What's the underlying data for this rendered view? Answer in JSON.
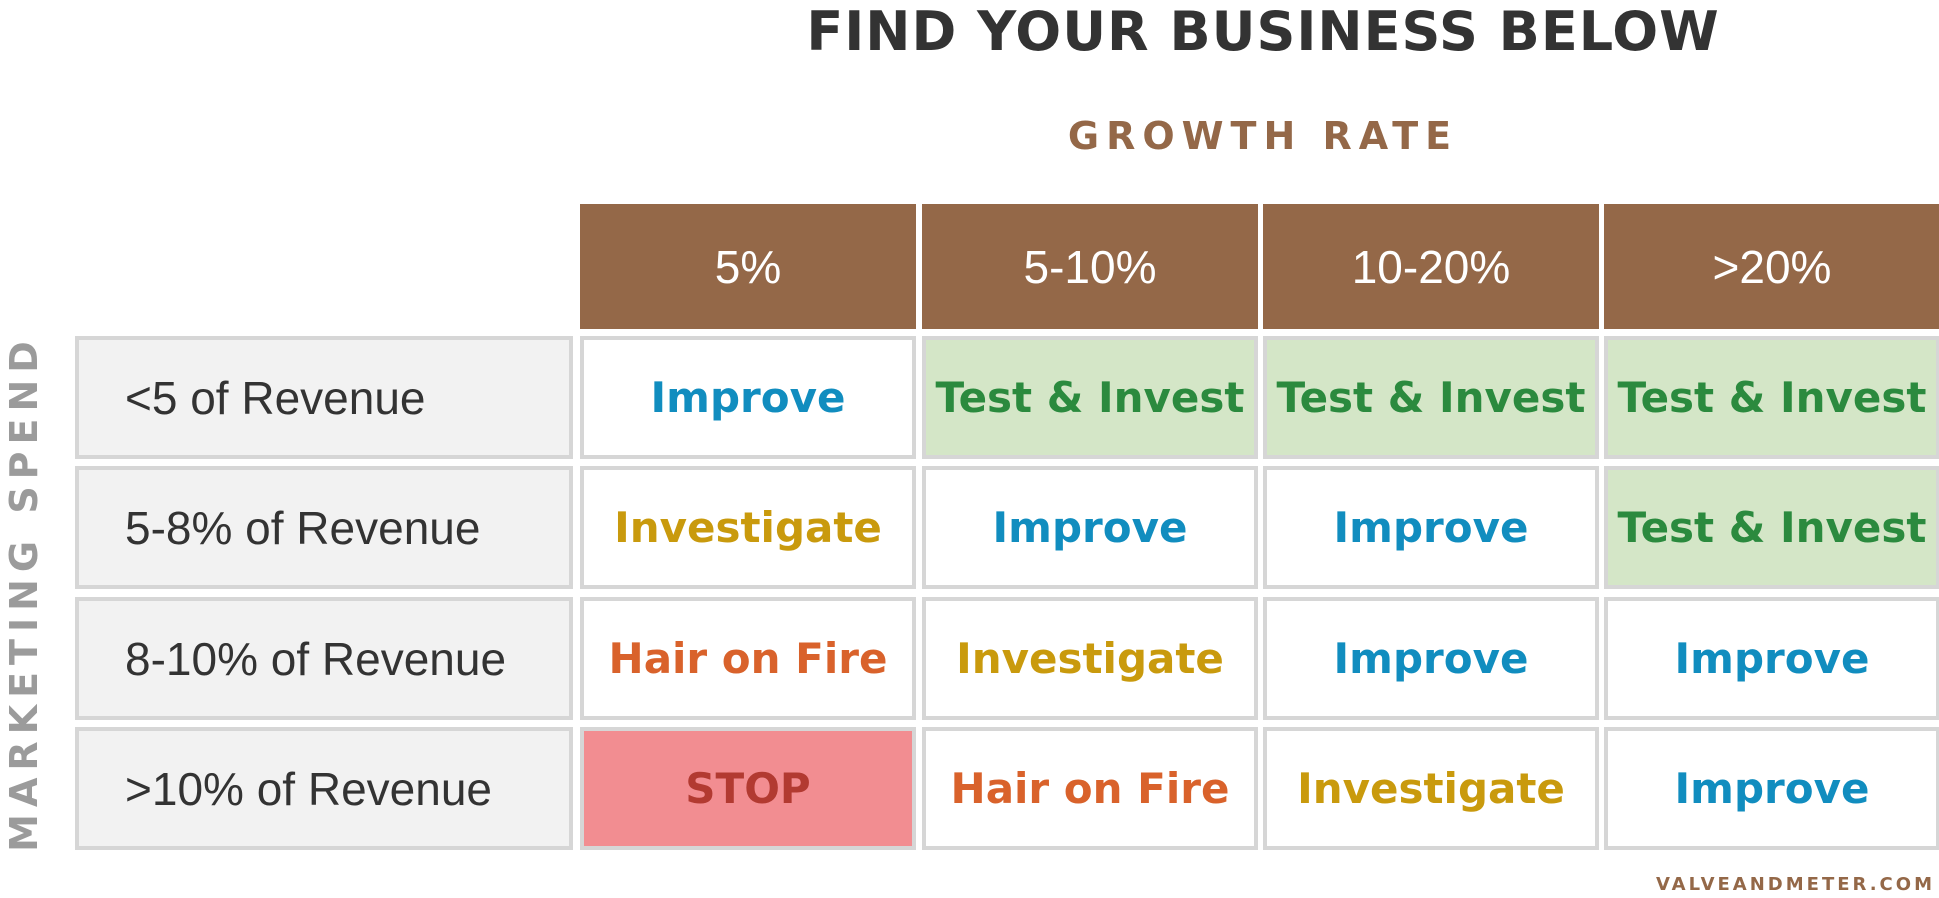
{
  "title": "FIND YOUR BUSINESS BELOW",
  "column_axis_label": "GROWTH RATE",
  "row_axis_label": "MARKETING SPEND",
  "columns": [
    "5%",
    "5-10%",
    "10-20%",
    ">20%"
  ],
  "rows": [
    {
      "label": "<5 of Revenue",
      "cells": [
        "Improve",
        "Test & Invest",
        "Test & Invest",
        "Test & Invest"
      ]
    },
    {
      "label": "5-8% of Revenue",
      "cells": [
        "Investigate",
        "Improve",
        "Improve",
        "Test & Invest"
      ]
    },
    {
      "label": "8-10% of Revenue",
      "cells": [
        "Hair on Fire",
        "Investigate",
        "Improve",
        "Improve"
      ]
    },
    {
      "label": ">10% of Revenue",
      "cells": [
        "STOP",
        "Hair on Fire",
        "Investigate",
        "Improve"
      ]
    }
  ],
  "colors": {
    "header_brown": "#946848",
    "improve": "#118dbf",
    "test_invest": "#2b8a3e",
    "test_invest_fill": "#d4e6c7",
    "investigate": "#c99a0d",
    "hair_on_fire": "#d9622b",
    "stop": "#b23a31",
    "stop_fill": "#f28d91"
  },
  "credit": "VALVEANDMETER.COM"
}
